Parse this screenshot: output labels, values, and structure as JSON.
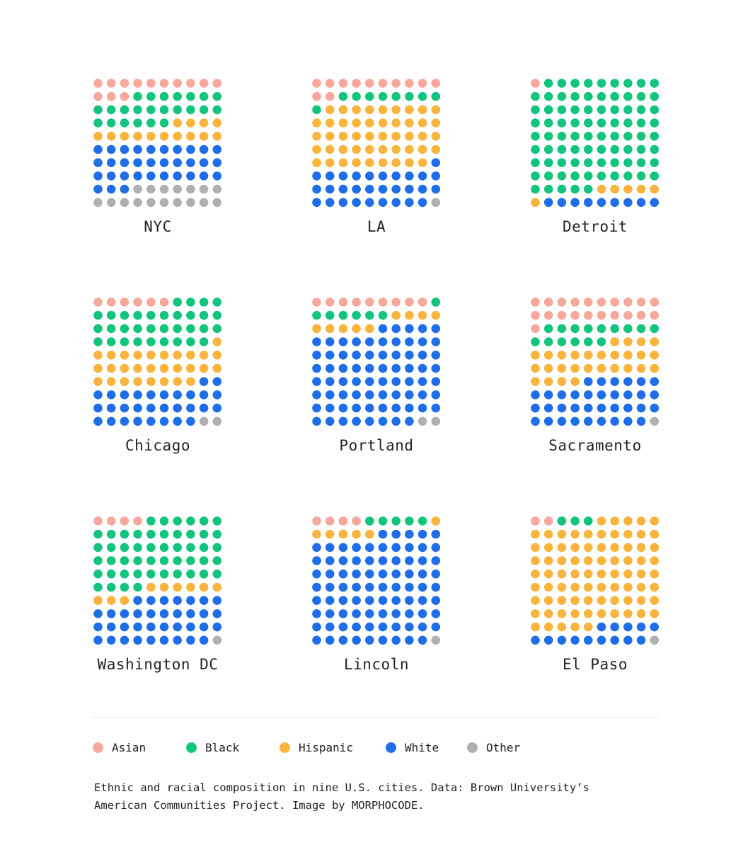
{
  "chart_data": {
    "type": "waffle",
    "title": "Ethnic and racial composition in nine U.S. cities",
    "grid": {
      "rows": 10,
      "cols": 10,
      "fill_order": "row-major, top-left first"
    },
    "categories": [
      "Asian",
      "Black",
      "Hispanic",
      "White",
      "Other"
    ],
    "colors": {
      "Asian": "#f6a89c",
      "Black": "#13c57c",
      "Hispanic": "#f8b43c",
      "White": "#1f6ee8",
      "Other": "#b0b0b0"
    },
    "cities": [
      {
        "name": "NYC",
        "values": {
          "Asian": 13,
          "Black": 23,
          "Hispanic": 14,
          "White": 33,
          "Other": 17
        }
      },
      {
        "name": "LA",
        "values": {
          "Asian": 12,
          "Black": 9,
          "Hispanic": 48,
          "White": 30,
          "Other": 1
        }
      },
      {
        "name": "Detroit",
        "values": {
          "Asian": 1,
          "Black": 84,
          "Hispanic": 6,
          "White": 9,
          "Other": 0
        }
      },
      {
        "name": "Chicago",
        "values": {
          "Asian": 6,
          "Black": 33,
          "Hispanic": 29,
          "White": 30,
          "Other": 2
        }
      },
      {
        "name": "Portland",
        "values": {
          "Asian": 9,
          "Black": 7,
          "Hispanic": 9,
          "White": 73,
          "Other": 2
        }
      },
      {
        "name": "Sacramento",
        "values": {
          "Asian": 21,
          "Black": 15,
          "Hispanic": 28,
          "White": 35,
          "Other": 1
        }
      },
      {
        "name": "Washington DC",
        "values": {
          "Asian": 4,
          "Black": 50,
          "Hispanic": 9,
          "White": 36,
          "Other": 1
        }
      },
      {
        "name": "Lincoln",
        "values": {
          "Asian": 4,
          "Black": 5,
          "Hispanic": 6,
          "White": 84,
          "Other": 1
        }
      },
      {
        "name": "El Paso",
        "values": {
          "Asian": 2,
          "Black": 3,
          "Hispanic": 80,
          "White": 14,
          "Other": 1
        }
      }
    ]
  },
  "legend": [
    {
      "label": "Asian",
      "color": "#f6a89c"
    },
    {
      "label": "Black",
      "color": "#13c57c"
    },
    {
      "label": "Hispanic",
      "color": "#f8b43c"
    },
    {
      "label": "White",
      "color": "#1f6ee8"
    },
    {
      "label": "Other",
      "color": "#b0b0b0"
    }
  ],
  "caption": {
    "line1": "Ethnic and racial composition in nine U.S. cities. Data: Brown University’s",
    "line2": "American Communities Project. Image by MORPHOCODE."
  }
}
